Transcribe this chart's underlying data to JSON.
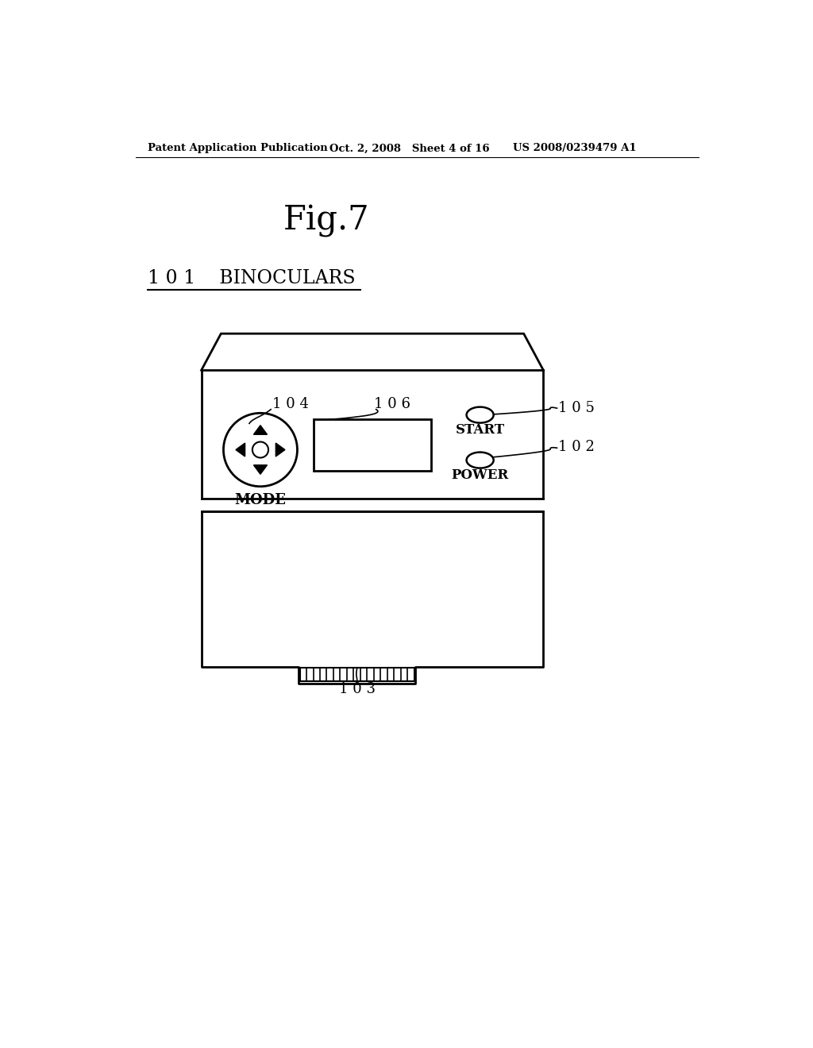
{
  "bg_color": "#ffffff",
  "header_left": "Patent Application Publication",
  "header_mid": "Oct. 2, 2008   Sheet 4 of 16",
  "header_right": "US 2008/0239479 A1",
  "fig_title": "Fig.7",
  "label_101": "1 0 1",
  "label_binoculars": "BINOCULARS",
  "label_102": "1 0 2",
  "label_103": "1 0 3",
  "label_104": "1 0 4",
  "label_105": "1 0 5",
  "label_106": "1 0 6",
  "label_mode": "MODE",
  "label_start": "START",
  "label_power": "POWER",
  "line_color": "#000000",
  "text_color": "#000000"
}
